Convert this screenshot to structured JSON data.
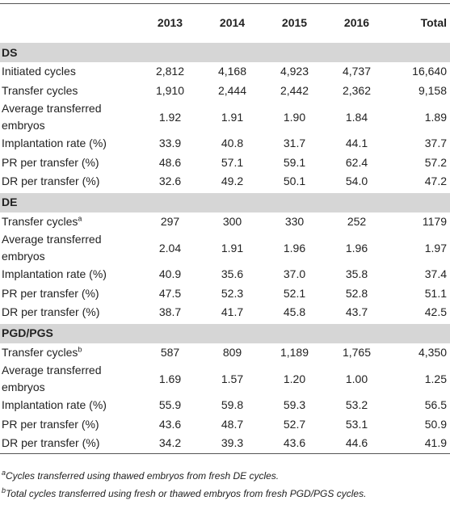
{
  "table": {
    "columns": [
      "2013",
      "2014",
      "2015",
      "2016",
      "Total"
    ],
    "sections": [
      {
        "title": "DS",
        "rows": [
          {
            "label": "Initiated cycles",
            "values": [
              "2,812",
              "4,168",
              "4,923",
              "4,737",
              "16,640"
            ]
          },
          {
            "label": "Transfer cycles",
            "values": [
              "1,910",
              "2,444",
              "2,442",
              "2,362",
              "9,158"
            ]
          },
          {
            "label": "Average transferred embryos",
            "values": [
              "1.92",
              "1.91",
              "1.90",
              "1.84",
              "1.89"
            ]
          },
          {
            "label": "Implantation rate (%)",
            "values": [
              "33.9",
              "40.8",
              "31.7",
              "44.1",
              "37.7"
            ]
          },
          {
            "label": "PR per transfer (%)",
            "values": [
              "48.6",
              "57.1",
              "59.1",
              "62.4",
              "57.2"
            ]
          },
          {
            "label": "DR per transfer (%)",
            "values": [
              "32.6",
              "49.2",
              "50.1",
              "54.0",
              "47.2"
            ]
          }
        ]
      },
      {
        "title": "DE",
        "rows": [
          {
            "label": "Transfer cycles",
            "note": "a",
            "values": [
              "297",
              "300",
              "330",
              "252",
              "1179"
            ]
          },
          {
            "label": "Average transferred embryos",
            "values": [
              "2.04",
              "1.91",
              "1.96",
              "1.96",
              "1.97"
            ]
          },
          {
            "label": "Implantation rate (%)",
            "values": [
              "40.9",
              "35.6",
              "37.0",
              "35.8",
              "37.4"
            ]
          },
          {
            "label": "PR per transfer (%)",
            "values": [
              "47.5",
              "52.3",
              "52.1",
              "52.8",
              "51.1"
            ]
          },
          {
            "label": "DR per transfer (%)",
            "values": [
              "38.7",
              "41.7",
              "45.8",
              "43.7",
              "42.5"
            ]
          }
        ]
      },
      {
        "title": "PGD/PGS",
        "rows": [
          {
            "label": "Transfer cycles",
            "note": "b",
            "values": [
              "587",
              "809",
              "1,189",
              "1,765",
              "4,350"
            ]
          },
          {
            "label": "Average transferred embryos",
            "values": [
              "1.69",
              "1.57",
              "1.20",
              "1.00",
              "1.25"
            ]
          },
          {
            "label": "Implantation rate (%)",
            "values": [
              "55.9",
              "59.8",
              "59.3",
              "53.2",
              "56.5"
            ]
          },
          {
            "label": "PR per transfer (%)",
            "values": [
              "43.6",
              "48.7",
              "52.7",
              "53.1",
              "50.9"
            ]
          },
          {
            "label": "DR per transfer (%)",
            "values": [
              "34.2",
              "39.3",
              "43.6",
              "44.6",
              "41.9"
            ]
          }
        ]
      }
    ],
    "footnotes": [
      {
        "marker": "a",
        "text": "Cycles transferred using thawed embryos from fresh DE cycles."
      },
      {
        "marker": "b",
        "text": "Total cycles transferred using fresh or thawed embryos from fresh PGD/PGS cycles."
      }
    ]
  }
}
